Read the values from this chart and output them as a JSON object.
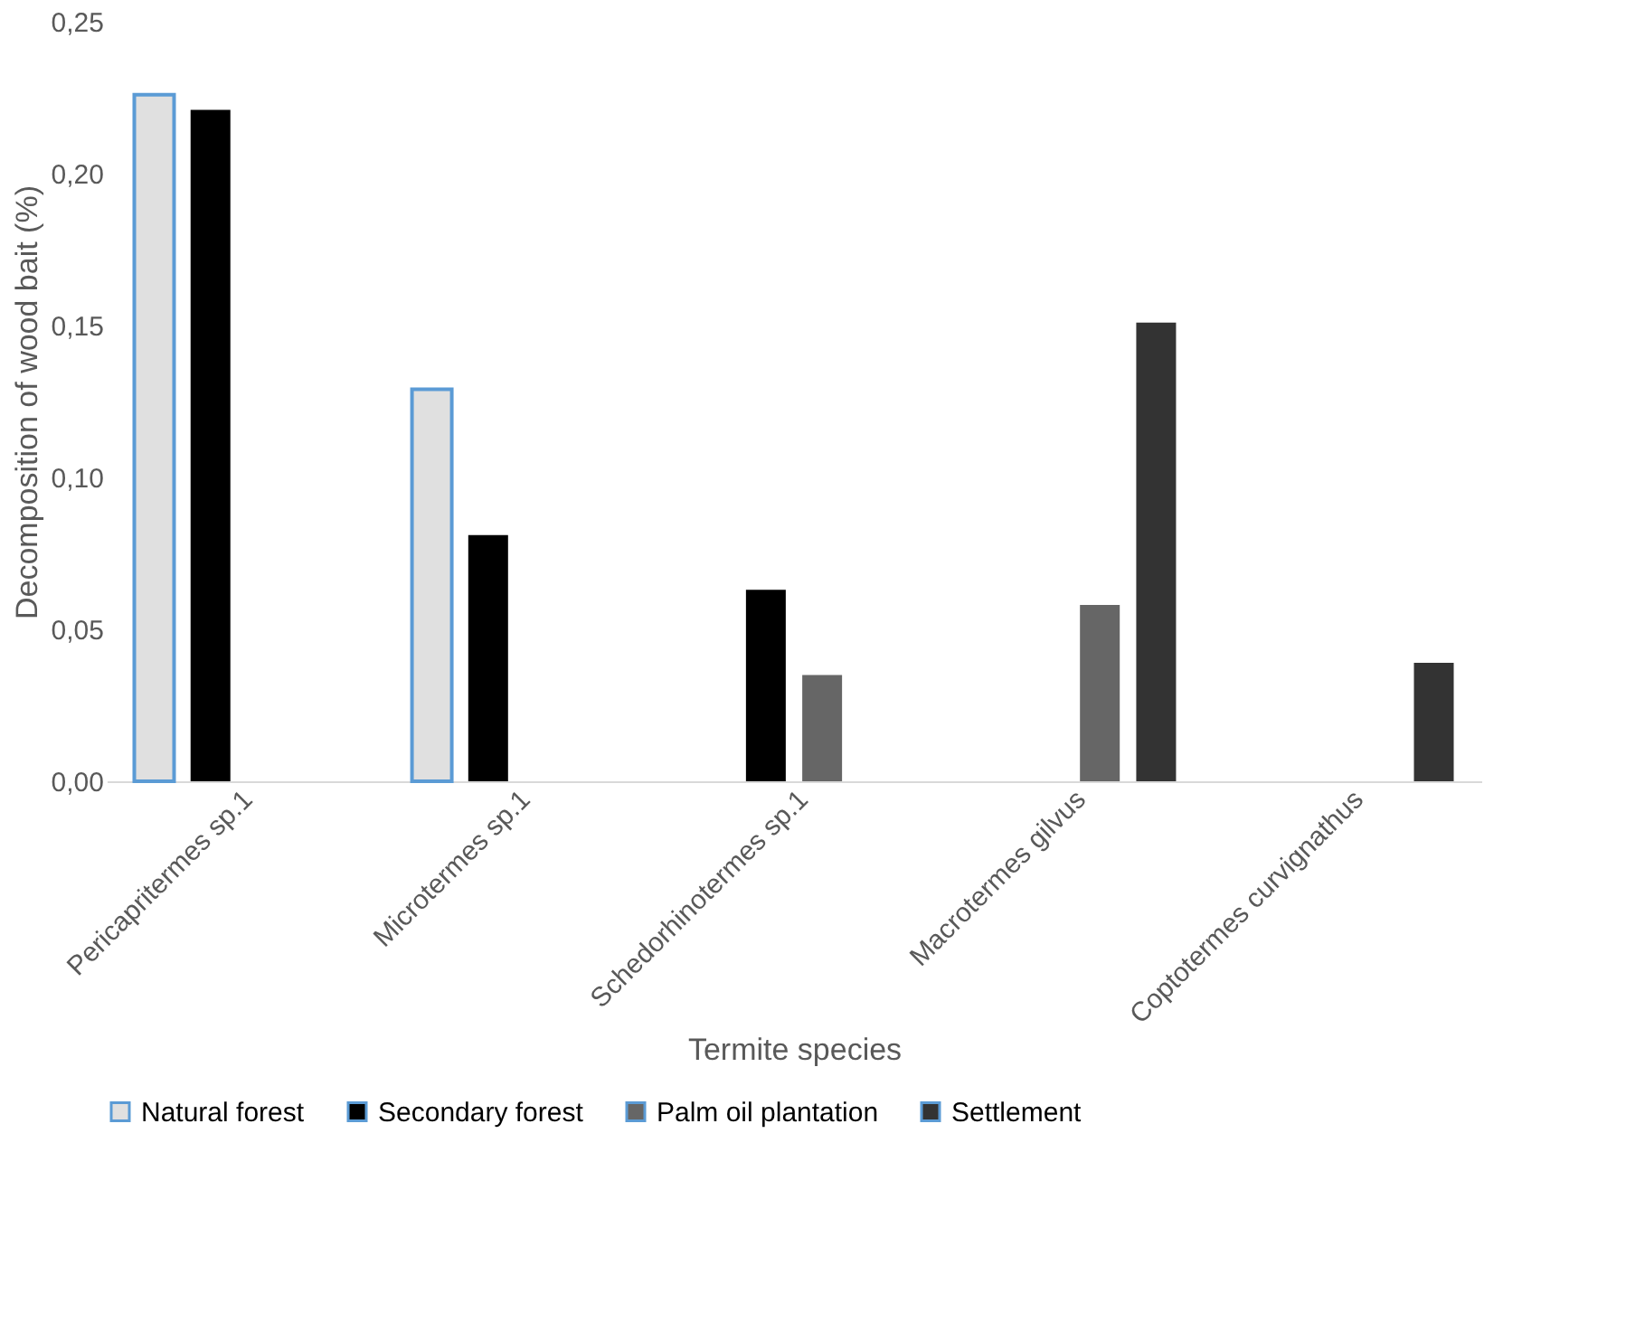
{
  "chart_data": {
    "type": "bar",
    "xlabel": "Termite species",
    "ylabel": "Decomposition of wood bait (%)",
    "categories": [
      "Pericapritermes sp.1",
      "Microtermes sp.1",
      "Schedorhinotermes sp.1",
      "Macrotermes gilvus",
      "Coptotermes curvignathus"
    ],
    "series": [
      {
        "name": "Natural forest",
        "color": "#e0e0e0",
        "values": [
          0.226,
          0.129,
          null,
          null,
          null
        ]
      },
      {
        "name": "Secondary forest",
        "color": "#000000",
        "values": [
          0.221,
          0.081,
          0.063,
          null,
          null
        ]
      },
      {
        "name": "Palm oil plantation",
        "color": "#666666",
        "values": [
          null,
          null,
          0.035,
          0.058,
          null
        ]
      },
      {
        "name": "Settlement",
        "color": "#333333",
        "values": [
          null,
          null,
          null,
          0.151,
          0.039
        ]
      }
    ],
    "ylim": [
      0,
      0.25
    ],
    "yticks": [
      {
        "value": 0,
        "label": "0,00"
      },
      {
        "value": 0.05,
        "label": "0,05"
      },
      {
        "value": 0.1,
        "label": "0,10"
      },
      {
        "value": 0.15,
        "label": "0,15"
      },
      {
        "value": 0.2,
        "label": "0,20"
      },
      {
        "value": 0.25,
        "label": "0,25"
      }
    ],
    "grid": false,
    "legend": "bottom"
  }
}
